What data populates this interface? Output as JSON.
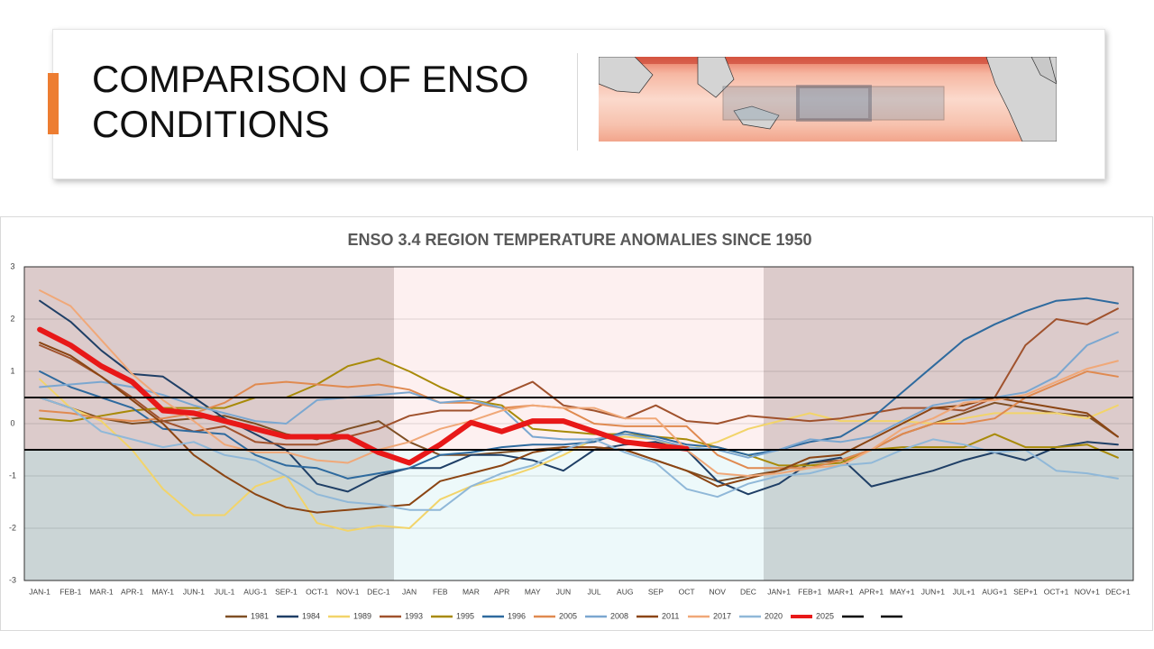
{
  "header": {
    "title": "COMPARISON OF ENSO CONDITIONS"
  },
  "chart_data": {
    "type": "line",
    "title": "ENSO 3.4 REGION TEMPERATURE ANOMALIES SINCE 1950",
    "categories": [
      "JAN-1",
      "FEB-1",
      "MAR-1",
      "APR-1",
      "MAY-1",
      "JUN-1",
      "JUL-1",
      "AUG-1",
      "SEP-1",
      "OCT-1",
      "NOV-1",
      "DEC-1",
      "JAN",
      "FEB",
      "MAR",
      "APR",
      "MAY",
      "JUN",
      "JUL",
      "AUG",
      "SEP",
      "OCT",
      "NOV",
      "DEC",
      "JAN+1",
      "FEB+1",
      "MAR+1",
      "APR+1",
      "MAY+1",
      "JUN+1",
      "JUL+1",
      "AUG+1",
      "SEP+1",
      "OCT+1",
      "NOV+1",
      "DEC+1"
    ],
    "ylim": [
      -3,
      3
    ],
    "yticks": [
      -3,
      -2,
      -1,
      0,
      1,
      2,
      3
    ],
    "grid": true,
    "thresholds": [
      0.5,
      -0.5
    ],
    "threshold_color": "#000000",
    "series": [
      {
        "name": "1981",
        "color": "#7f4f24",
        "values": [
          0.5,
          0.3,
          0.1,
          0.0,
          0.05,
          0.1,
          0.15,
          0.0,
          -0.2,
          -0.3,
          -0.1,
          0.05,
          -0.35,
          -0.6,
          -0.6,
          -0.55,
          -0.5,
          -0.45,
          -0.45,
          -0.5,
          -0.7,
          -0.9,
          -1.1,
          -1.0,
          -0.9,
          -0.75,
          -0.7,
          -0.5,
          -0.2,
          0.0,
          0.2,
          0.4,
          0.3,
          0.2,
          0.15,
          -0.25
        ]
      },
      {
        "name": "1984",
        "color": "#1f3f66",
        "values": [
          2.35,
          1.95,
          1.4,
          0.95,
          0.9,
          0.5,
          0.1,
          -0.2,
          -0.5,
          -1.15,
          -1.3,
          -1.0,
          -0.85,
          -0.85,
          -0.6,
          -0.6,
          -0.7,
          -0.9,
          -0.5,
          -0.4,
          -0.35,
          -0.5,
          -1.1,
          -1.35,
          -1.15,
          -0.75,
          -0.65,
          -1.2,
          -1.05,
          -0.9,
          -0.7,
          -0.55,
          -0.7,
          -0.45,
          -0.35,
          -0.4
        ]
      },
      {
        "name": "1989",
        "color": "#f2d46a",
        "values": [
          0.85,
          0.3,
          0.05,
          -0.5,
          -1.25,
          -1.75,
          -1.75,
          -1.2,
          -1.0,
          -1.9,
          -2.05,
          -1.95,
          -2.0,
          -1.45,
          -1.2,
          -1.05,
          -0.85,
          -0.6,
          -0.3,
          -0.25,
          -0.3,
          -0.5,
          -0.35,
          -0.1,
          0.05,
          0.2,
          0.05,
          0.05,
          0.05,
          0.0,
          0.1,
          0.2,
          0.2,
          0.2,
          0.1,
          0.35
        ]
      },
      {
        "name": "1993",
        "color": "#a0522d",
        "values": [
          1.5,
          1.25,
          0.9,
          0.5,
          0.05,
          -0.15,
          -0.05,
          -0.35,
          -0.4,
          -0.4,
          -0.25,
          -0.1,
          0.15,
          0.25,
          0.25,
          0.55,
          0.8,
          0.35,
          0.25,
          0.1,
          0.35,
          0.05,
          0.0,
          0.15,
          0.1,
          0.05,
          0.1,
          0.2,
          0.3,
          0.3,
          0.25,
          0.5,
          1.5,
          2.0,
          1.9,
          2.2
        ]
      },
      {
        "name": "1995",
        "color": "#a88a08",
        "values": [
          0.1,
          0.05,
          0.15,
          0.25,
          0.3,
          0.3,
          0.3,
          0.5,
          0.5,
          0.75,
          1.1,
          1.25,
          1.0,
          0.7,
          0.45,
          0.35,
          -0.1,
          -0.15,
          -0.2,
          -0.2,
          -0.25,
          -0.3,
          -0.45,
          -0.6,
          -0.8,
          -0.8,
          -0.75,
          -0.5,
          -0.45,
          -0.45,
          -0.45,
          -0.2,
          -0.45,
          -0.45,
          -0.4,
          -0.65
        ]
      },
      {
        "name": "1996",
        "color": "#2e6a9e",
        "values": [
          1.0,
          0.7,
          0.5,
          0.3,
          -0.1,
          -0.15,
          -0.2,
          -0.6,
          -0.8,
          -0.85,
          -1.05,
          -0.95,
          -0.85,
          -0.6,
          -0.55,
          -0.45,
          -0.4,
          -0.4,
          -0.35,
          -0.15,
          -0.25,
          -0.4,
          -0.45,
          -0.6,
          -0.5,
          -0.35,
          -0.25,
          0.1,
          0.6,
          1.1,
          1.6,
          1.9,
          2.15,
          2.35,
          2.4,
          2.3
        ]
      },
      {
        "name": "2005",
        "color": "#e08a50",
        "values": [
          0.25,
          0.2,
          0.1,
          0.05,
          0.1,
          0.2,
          0.4,
          0.75,
          0.8,
          0.75,
          0.7,
          0.75,
          0.65,
          0.4,
          0.4,
          0.3,
          0.35,
          0.3,
          0.0,
          -0.05,
          -0.05,
          -0.05,
          -0.6,
          -0.85,
          -0.85,
          -0.85,
          -0.7,
          -0.5,
          -0.2,
          0.0,
          0.0,
          0.1,
          0.5,
          0.75,
          1.0,
          0.9
        ]
      },
      {
        "name": "2008",
        "color": "#7ba7d0",
        "values": [
          0.7,
          0.75,
          0.8,
          0.7,
          0.55,
          0.35,
          0.2,
          0.05,
          0.0,
          0.45,
          0.5,
          0.55,
          0.6,
          0.4,
          0.45,
          0.3,
          -0.25,
          -0.3,
          -0.3,
          -0.2,
          -0.3,
          -0.45,
          -0.5,
          -0.65,
          -0.5,
          -0.3,
          -0.35,
          -0.25,
          0.05,
          0.35,
          0.45,
          0.5,
          0.6,
          0.9,
          1.5,
          1.75
        ]
      },
      {
        "name": "2011",
        "color": "#8b4513",
        "values": [
          1.55,
          1.3,
          0.9,
          0.45,
          0.0,
          -0.6,
          -1.0,
          -1.35,
          -1.6,
          -1.7,
          -1.65,
          -1.6,
          -1.55,
          -1.1,
          -0.95,
          -0.8,
          -0.55,
          -0.45,
          -0.45,
          -0.5,
          -0.7,
          -0.9,
          -1.2,
          -1.05,
          -0.9,
          -0.65,
          -0.6,
          -0.3,
          0.0,
          0.3,
          0.35,
          0.5,
          0.4,
          0.3,
          0.2,
          -0.25
        ]
      },
      {
        "name": "2017",
        "color": "#f0a878",
        "values": [
          2.55,
          2.25,
          1.6,
          0.95,
          0.45,
          0.05,
          -0.4,
          -0.55,
          -0.55,
          -0.7,
          -0.75,
          -0.5,
          -0.35,
          -0.1,
          0.05,
          0.25,
          0.35,
          0.3,
          0.3,
          0.1,
          0.1,
          -0.5,
          -0.95,
          -1.0,
          -0.95,
          -0.85,
          -0.8,
          -0.5,
          -0.1,
          0.1,
          0.4,
          0.45,
          0.55,
          0.8,
          1.05,
          1.2
        ]
      },
      {
        "name": "2020",
        "color": "#90b8d8",
        "values": [
          0.5,
          0.3,
          -0.15,
          -0.3,
          -0.45,
          -0.35,
          -0.6,
          -0.7,
          -1.0,
          -1.35,
          -1.5,
          -1.55,
          -1.65,
          -1.65,
          -1.2,
          -0.95,
          -0.8,
          -0.5,
          -0.3,
          -0.55,
          -0.75,
          -1.25,
          -1.4,
          -1.15,
          -1.0,
          -0.95,
          -0.8,
          -0.75,
          -0.5,
          -0.3,
          -0.4,
          -0.55,
          -0.5,
          -0.9,
          -0.95,
          -1.05
        ]
      },
      {
        "name": "2025",
        "color": "#e81818",
        "width": 6,
        "values": [
          1.8,
          1.5,
          1.1,
          0.8,
          0.25,
          0.2,
          0.05,
          -0.1,
          -0.25,
          -0.25,
          -0.25,
          -0.55,
          -0.75,
          -0.4,
          0.02,
          -0.15,
          0.05,
          0.05,
          -0.15,
          -0.35,
          -0.42,
          -0.48,
          null,
          null,
          null,
          null,
          null,
          null,
          null,
          null,
          null,
          null,
          null,
          null,
          null,
          null
        ]
      }
    ]
  }
}
